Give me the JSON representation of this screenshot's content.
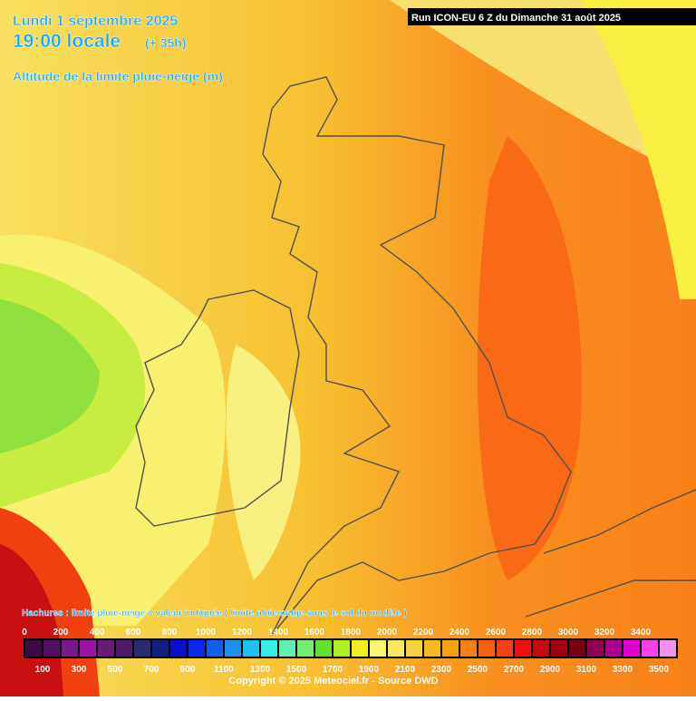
{
  "header": {
    "date": "Lundi 1 septembre 2025",
    "time": "19:00 locale",
    "offset": "(+ 35h)",
    "subtitle": "Altitude de la limite pluie-neige (m)",
    "run": "Run ICON-EU 6 Z du Dimanche 31 août 2025"
  },
  "legend": {
    "note": "Hachures : limite pluie-neige < valeur indiquée ( limite pluie-neige sous le sol du modèle )",
    "levels": [
      0,
      100,
      200,
      300,
      400,
      500,
      600,
      700,
      800,
      900,
      1000,
      1100,
      1200,
      1300,
      1400,
      1500,
      1600,
      1700,
      1800,
      1900,
      2000,
      2100,
      2200,
      2300,
      2400,
      2500,
      2600,
      2700,
      2800,
      2900,
      3000,
      3100,
      3200,
      3300,
      3400,
      3500
    ],
    "colors": [
      "#3c0a48",
      "#520f62",
      "#781a8c",
      "#9a14a4",
      "#6c1878",
      "#50186a",
      "#2a2a70",
      "#102080",
      "#0a10c8",
      "#0a2af0",
      "#1060f0",
      "#1a90f0",
      "#20c0f0",
      "#30f0e8",
      "#60f0b0",
      "#70f070",
      "#60e030",
      "#b0f020",
      "#f0f020",
      "#f8f870",
      "#f8e860",
      "#f8d040",
      "#f8b820",
      "#f8a010",
      "#f88010",
      "#f86010",
      "#f84010",
      "#f01010",
      "#c80810",
      "#a00010",
      "#780010",
      "#900050",
      "#a80090",
      "#e000d0",
      "#f840f0",
      "#f890f0"
    ]
  },
  "footer": {
    "copyright": "Copyright © 2025 Meteociel.fr - Source DWD"
  }
}
